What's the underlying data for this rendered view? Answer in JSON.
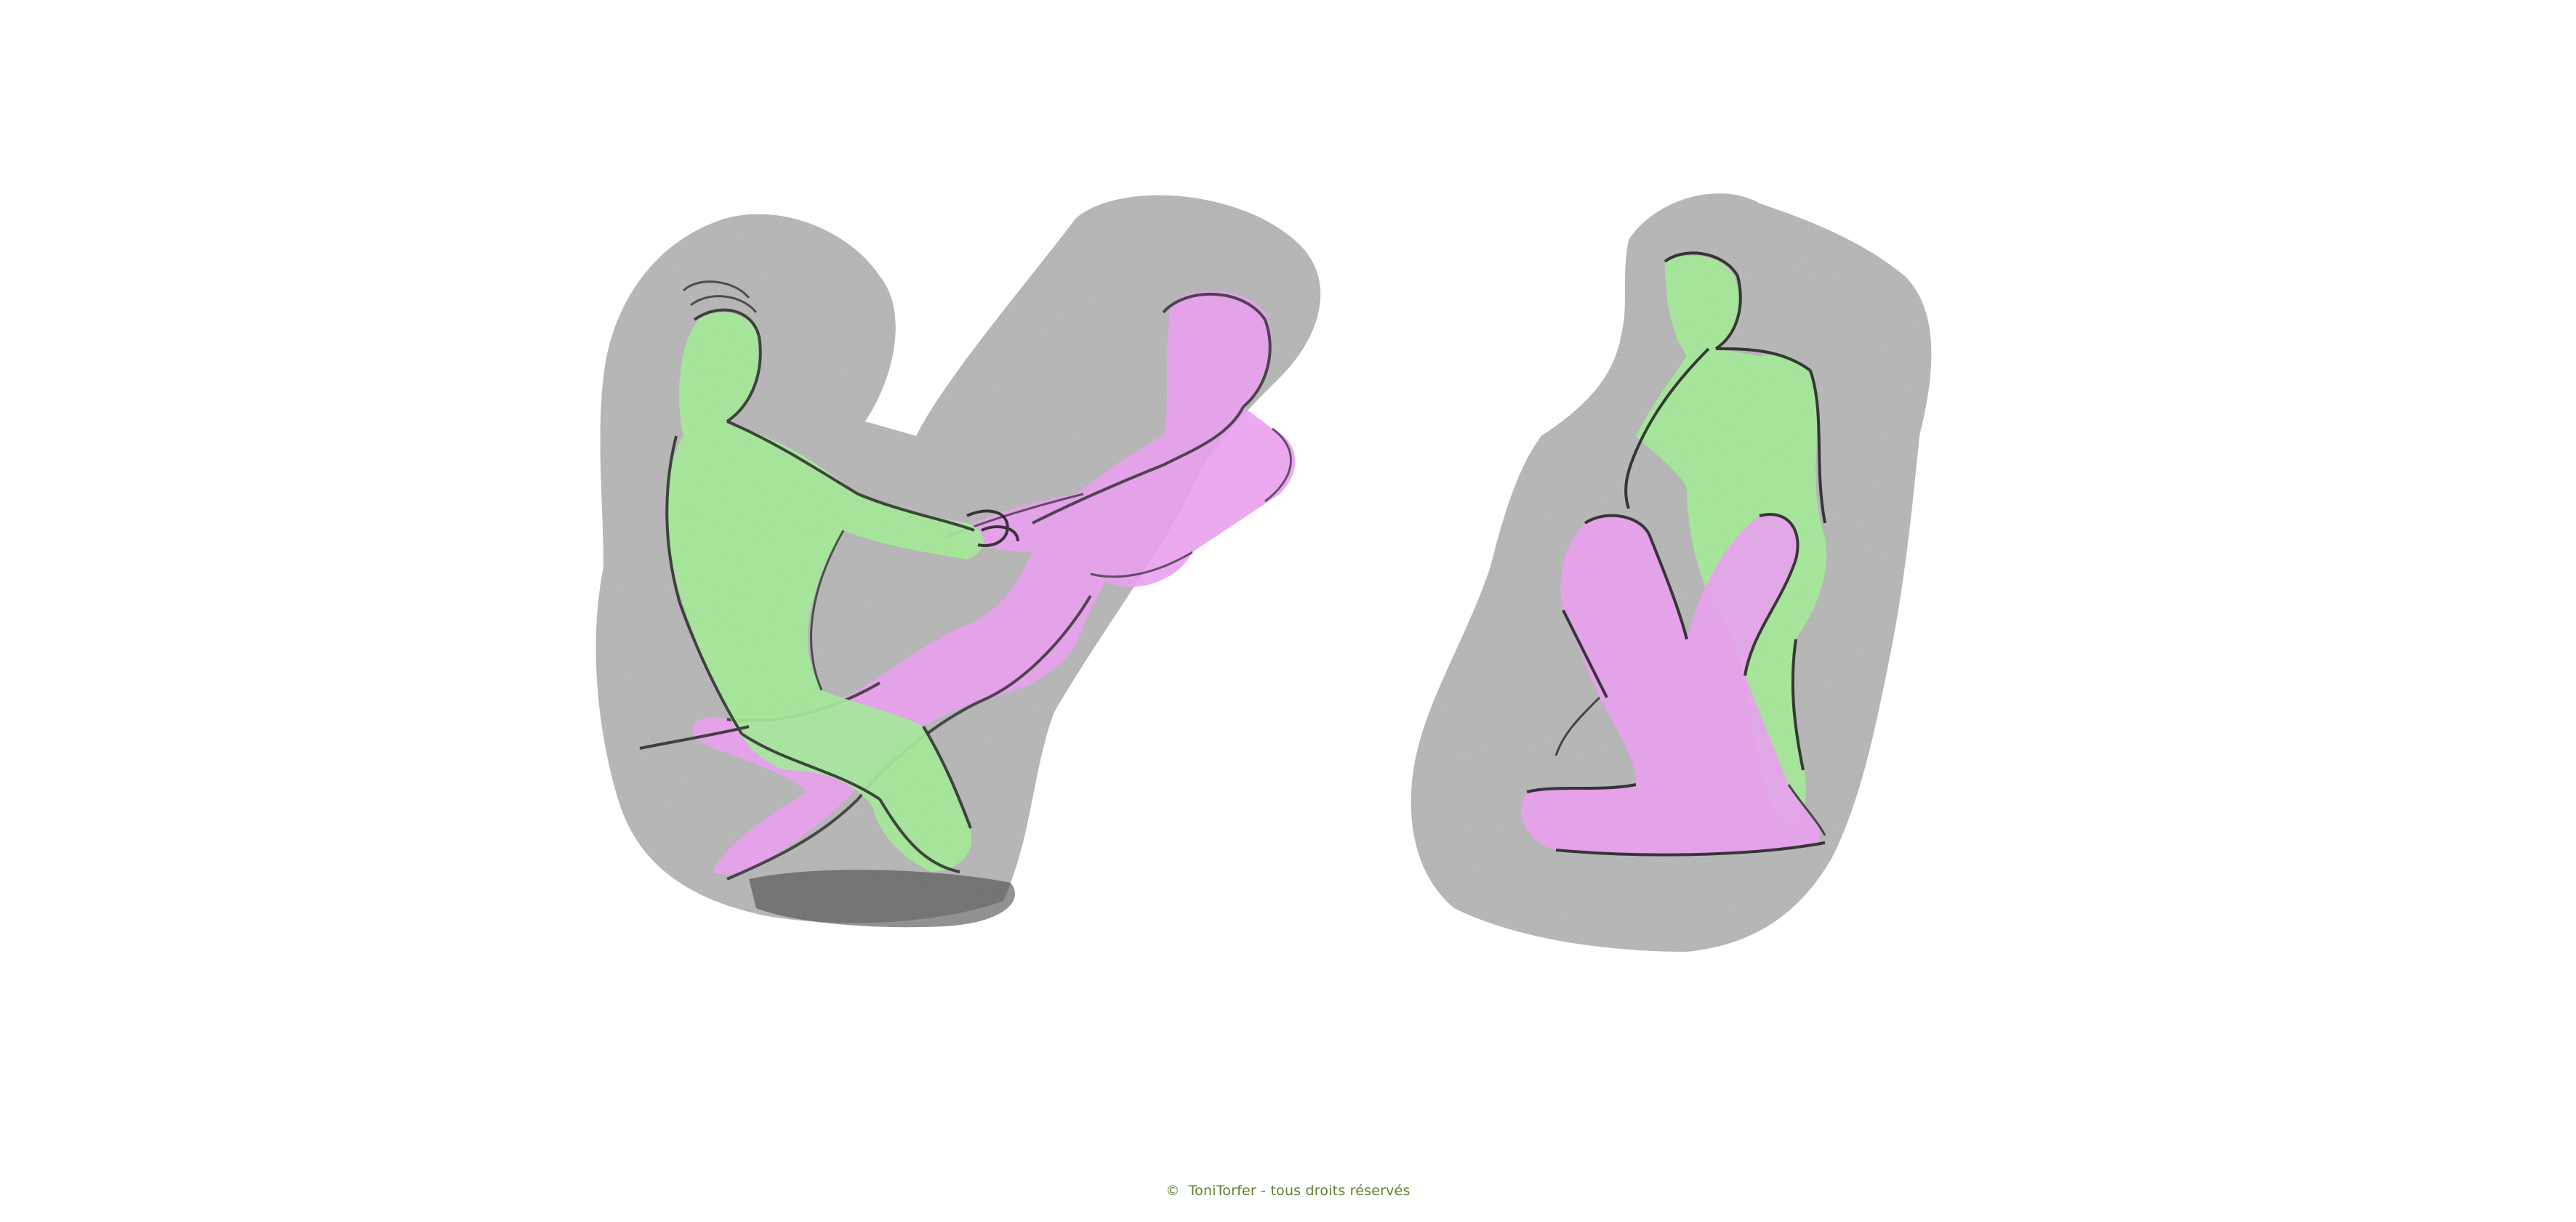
{
  "footer": {
    "copyright_symbol": "©",
    "text": "ToniTorfer - tous droits réservés"
  },
  "colors": {
    "figure_green": "#a5e89a",
    "figure_pink": "#e9a0ee",
    "charcoal": "#2a2a2a",
    "shade_gray": "#7b7b7b",
    "footer_text": "#5f7f2c"
  }
}
